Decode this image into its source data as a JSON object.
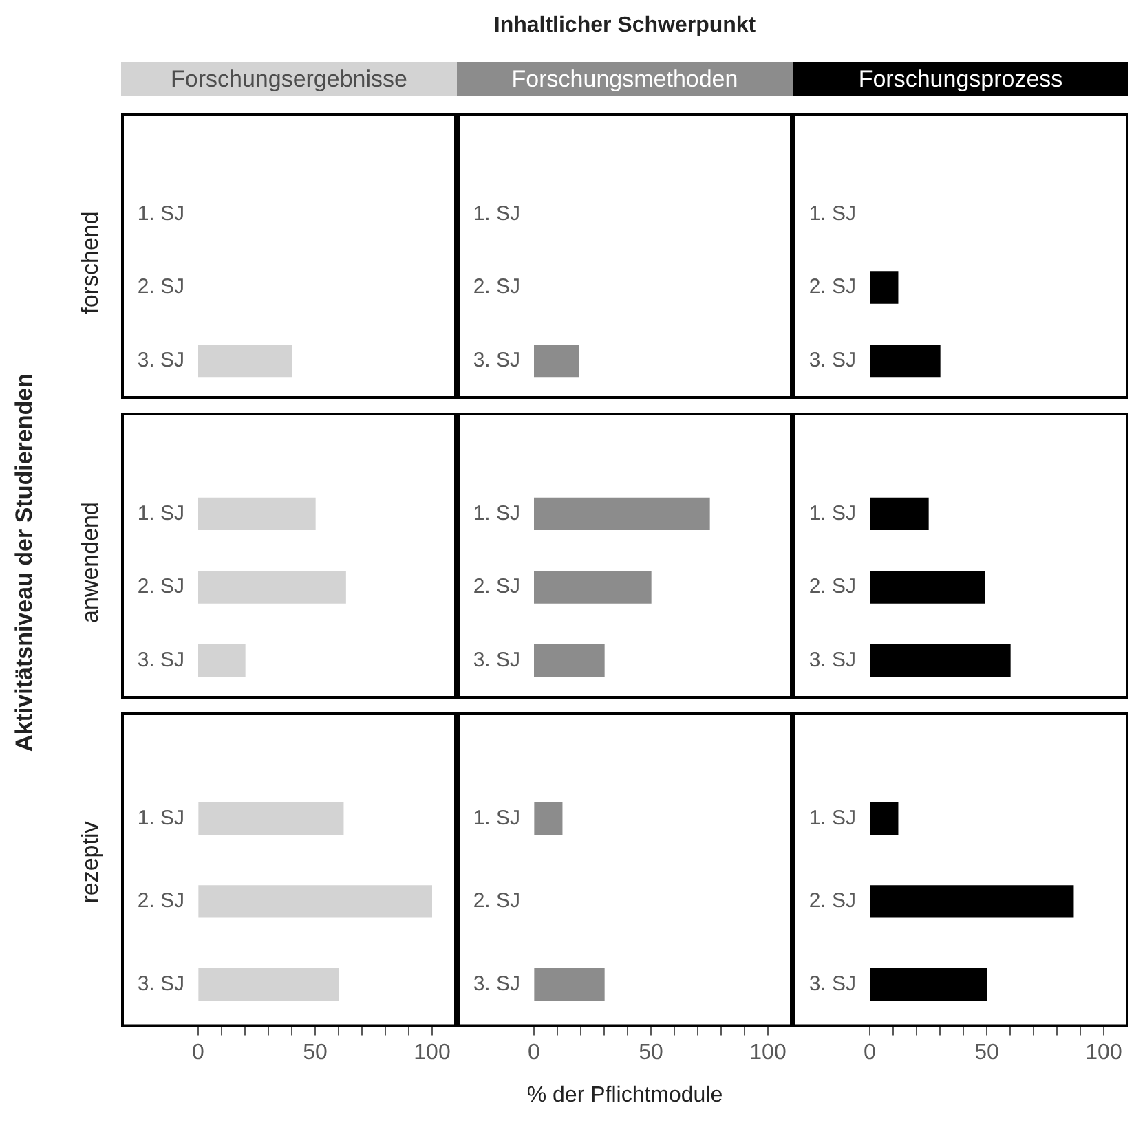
{
  "chart_data": [
    {
      "type": "bar",
      "orientation": "horizontal",
      "title": "Forschungsergebnisse",
      "ylabel": "forschend",
      "categories": [
        "1. SJ",
        "2. SJ",
        "3. SJ"
      ],
      "values": [
        null,
        null,
        40
      ],
      "color": "#d3d3d3",
      "xlim": [
        0,
        100
      ],
      "tick_labels": "y"
    },
    {
      "type": "bar",
      "orientation": "horizontal",
      "title": "Forschungsmethoden",
      "annotations": [
        "Inhaltlicher Schwerpunkt"
      ],
      "categories": [
        "1. SJ",
        "2. SJ",
        "3. SJ"
      ],
      "values": [
        null,
        null,
        19
      ],
      "color": "#8c8c8c",
      "xlim": [
        0,
        100
      ],
      "tick_labels": "y"
    },
    {
      "type": "bar",
      "orientation": "horizontal",
      "title": "Forschungsprozess",
      "categories": [
        "1. SJ",
        "2. SJ",
        "3. SJ"
      ],
      "values": [
        null,
        12,
        30
      ],
      "color": "#000000",
      "xlim": [
        0,
        100
      ],
      "tick_labels": "y"
    },
    {
      "type": "bar",
      "orientation": "horizontal",
      "ylabel": "anwendend",
      "annotations": [
        "Aktivitätsniveau der Studierenden"
      ],
      "categories": [
        "1. SJ",
        "2. SJ",
        "3. SJ"
      ],
      "values": [
        50,
        63,
        20
      ],
      "color": "#d3d3d3",
      "xlim": [
        0,
        100
      ],
      "tick_labels": "y"
    },
    {
      "type": "bar",
      "orientation": "horizontal",
      "categories": [
        "1. SJ",
        "2. SJ",
        "3. SJ"
      ],
      "values": [
        75,
        50,
        30
      ],
      "color": "#8c8c8c",
      "xlim": [
        0,
        100
      ],
      "tick_labels": "y"
    },
    {
      "type": "bar",
      "orientation": "horizontal",
      "categories": [
        "1. SJ",
        "2. SJ",
        "3. SJ"
      ],
      "values": [
        25,
        49,
        60
      ],
      "color": "#000000",
      "xlim": [
        0,
        100
      ],
      "tick_labels": "y"
    },
    {
      "type": "bar",
      "orientation": "horizontal",
      "ylabel": "rezeptiv",
      "categories": [
        "1. SJ",
        "2. SJ",
        "3. SJ"
      ],
      "values": [
        62,
        100,
        60
      ],
      "color": "#d3d3d3",
      "xlim": [
        0,
        100
      ],
      "xticks": [
        0,
        {
          "value": 10,
          "label": null
        },
        {
          "value": 20,
          "label": null
        },
        {
          "value": 30,
          "label": null
        },
        {
          "value": 40,
          "label": null
        },
        50,
        {
          "value": 60,
          "label": null
        },
        {
          "value": 70,
          "label": null
        },
        {
          "value": 80,
          "label": null
        },
        {
          "value": 90,
          "label": null
        },
        100
      ]
    },
    {
      "type": "bar",
      "orientation": "horizontal",
      "xlabel": "% der Pflichtmodule",
      "categories": [
        "1. SJ",
        "2. SJ",
        "3. SJ"
      ],
      "values": [
        12,
        null,
        30
      ],
      "color": "#8c8c8c",
      "xlim": [
        0,
        100
      ],
      "xticks": [
        0,
        {
          "value": 10,
          "label": null
        },
        {
          "value": 20,
          "label": null
        },
        {
          "value": 30,
          "label": null
        },
        {
          "value": 40,
          "label": null
        },
        50,
        {
          "value": 60,
          "label": null
        },
        {
          "value": 70,
          "label": null
        },
        {
          "value": 80,
          "label": null
        },
        {
          "value": 90,
          "label": null
        },
        100
      ]
    },
    {
      "type": "bar",
      "orientation": "horizontal",
      "categories": [
        "1. SJ",
        "2. SJ",
        "3. SJ"
      ],
      "values": [
        12,
        87,
        50
      ],
      "color": "#000000",
      "xlim": [
        0,
        100
      ],
      "xticks": [
        0,
        {
          "value": 10,
          "label": null
        },
        {
          "value": 20,
          "label": null
        },
        {
          "value": 30,
          "label": null
        },
        {
          "value": 40,
          "label": null
        },
        50,
        {
          "value": 60,
          "label": null
        },
        {
          "value": 70,
          "label": null
        },
        {
          "value": 80,
          "label": null
        },
        {
          "value": 90,
          "label": null
        },
        100
      ]
    }
  ]
}
